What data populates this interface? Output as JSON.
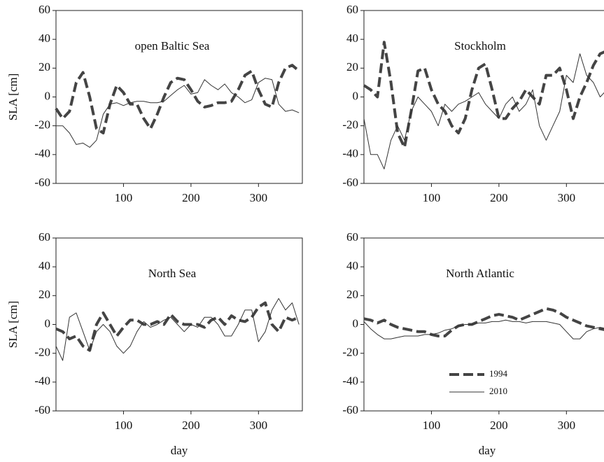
{
  "chart_data": [
    {
      "type": "line",
      "annotation": "open Baltic Sea",
      "ylabel": "SLA [cm]",
      "x": [
        0,
        10,
        20,
        30,
        40,
        50,
        60,
        70,
        80,
        90,
        100,
        110,
        120,
        130,
        140,
        150,
        160,
        170,
        180,
        190,
        200,
        210,
        220,
        230,
        240,
        250,
        260,
        270,
        280,
        290,
        300,
        310,
        320,
        330,
        340,
        350,
        360
      ],
      "xlim": [
        0,
        365
      ],
      "xticks": [
        100,
        200,
        300
      ],
      "ylim": [
        -60,
        60
      ],
      "yticks": [
        -60,
        -40,
        -20,
        0,
        20,
        40,
        60
      ],
      "series": [
        {
          "color": "#444444",
          "linestyle": "dashed",
          "values": [
            -8,
            -15,
            -10,
            10,
            17,
            0,
            -22,
            -25,
            -5,
            8,
            3,
            -5,
            -5,
            -15,
            -22,
            -12,
            0,
            10,
            13,
            12,
            5,
            -3,
            -7,
            -6,
            -4,
            -4,
            -3,
            5,
            15,
            18,
            5,
            -5,
            -7,
            10,
            20,
            22,
            18
          ]
        },
        {
          "color": "#333333",
          "linestyle": "solid",
          "values": [
            -20,
            -20,
            -25,
            -33,
            -32,
            -35,
            -30,
            -12,
            -5,
            -4,
            -6,
            -4,
            -3,
            -3,
            -4,
            -4,
            -3,
            1,
            5,
            8,
            2,
            3,
            12,
            8,
            5,
            9,
            3,
            0,
            -4,
            -2,
            10,
            13,
            12,
            -5,
            -10,
            -9,
            -11
          ]
        }
      ]
    },
    {
      "type": "line",
      "annotation": "Stockholm",
      "x": [
        0,
        10,
        20,
        30,
        40,
        50,
        60,
        70,
        80,
        90,
        100,
        110,
        120,
        130,
        140,
        150,
        160,
        170,
        180,
        190,
        200,
        210,
        220,
        230,
        240,
        250,
        260,
        270,
        280,
        290,
        300,
        310,
        320,
        330,
        340,
        350,
        360
      ],
      "xlim": [
        0,
        365
      ],
      "xticks": [
        100,
        200,
        300
      ],
      "ylim": [
        -60,
        60
      ],
      "yticks": [
        -60,
        -40,
        -20,
        0,
        20,
        40,
        60
      ],
      "series": [
        {
          "color": "#444444",
          "linestyle": "dashed",
          "values": [
            8,
            5,
            0,
            38,
            10,
            -25,
            -35,
            -10,
            18,
            20,
            5,
            -5,
            -10,
            -20,
            -25,
            -15,
            5,
            20,
            23,
            5,
            -15,
            -15,
            -8,
            -3,
            5,
            0,
            -5,
            15,
            15,
            20,
            5,
            -15,
            0,
            10,
            22,
            30,
            32
          ]
        },
        {
          "color": "#333333",
          "linestyle": "solid",
          "values": [
            -15,
            -40,
            -40,
            -50,
            -30,
            -20,
            -30,
            -10,
            0,
            -5,
            -10,
            -20,
            -5,
            -10,
            -5,
            -3,
            0,
            3,
            -5,
            -10,
            -15,
            -5,
            0,
            -10,
            -5,
            5,
            -20,
            -30,
            -20,
            -10,
            15,
            10,
            30,
            15,
            10,
            0,
            5
          ]
        }
      ]
    },
    {
      "type": "line",
      "annotation": "North Sea",
      "ylabel": "SLA [cm]",
      "xlabel": "day",
      "x": [
        0,
        10,
        20,
        30,
        40,
        50,
        60,
        70,
        80,
        90,
        100,
        110,
        120,
        130,
        140,
        150,
        160,
        170,
        180,
        190,
        200,
        210,
        220,
        230,
        240,
        250,
        260,
        270,
        280,
        290,
        300,
        310,
        320,
        330,
        340,
        350,
        360
      ],
      "xlim": [
        0,
        365
      ],
      "xticks": [
        100,
        200,
        300
      ],
      "ylim": [
        -60,
        60
      ],
      "yticks": [
        -60,
        -40,
        -20,
        0,
        20,
        40,
        60
      ],
      "series": [
        {
          "color": "#444444",
          "linestyle": "dashed",
          "values": [
            -3,
            -5,
            -10,
            -8,
            -15,
            -18,
            0,
            8,
            0,
            -8,
            -2,
            3,
            3,
            0,
            0,
            2,
            0,
            7,
            2,
            0,
            0,
            0,
            -2,
            3,
            5,
            0,
            6,
            3,
            2,
            5,
            12,
            15,
            0,
            -5,
            5,
            3,
            5
          ]
        },
        {
          "color": "#333333",
          "linestyle": "solid",
          "values": [
            -15,
            -25,
            5,
            8,
            -5,
            -18,
            -5,
            0,
            -5,
            -15,
            -20,
            -15,
            -5,
            2,
            -2,
            0,
            3,
            5,
            0,
            -5,
            0,
            -2,
            5,
            5,
            0,
            -8,
            -8,
            0,
            10,
            10,
            -12,
            -5,
            10,
            18,
            10,
            15,
            0
          ]
        }
      ]
    },
    {
      "type": "line",
      "annotation": "North Atlantic",
      "xlabel": "day",
      "legend": "lower center",
      "x": [
        0,
        10,
        20,
        30,
        40,
        50,
        60,
        70,
        80,
        90,
        100,
        110,
        120,
        130,
        140,
        150,
        160,
        170,
        180,
        190,
        200,
        210,
        220,
        230,
        240,
        250,
        260,
        270,
        280,
        290,
        300,
        310,
        320,
        330,
        340,
        350,
        360
      ],
      "xlim": [
        0,
        365
      ],
      "xticks": [
        100,
        200,
        300
      ],
      "ylim": [
        -60,
        60
      ],
      "yticks": [
        -60,
        -40,
        -20,
        0,
        20,
        40,
        60
      ],
      "series": [
        {
          "name": "1994",
          "color": "#444444",
          "linestyle": "dashed",
          "values": [
            4,
            3,
            1,
            3,
            0,
            -2,
            -3,
            -4,
            -5,
            -5,
            -7,
            -8,
            -8,
            -4,
            -1,
            0,
            0,
            2,
            4,
            6,
            7,
            6,
            5,
            3,
            5,
            7,
            9,
            11,
            10,
            8,
            5,
            3,
            1,
            -1,
            -2,
            -3,
            -4
          ]
        },
        {
          "name": "2010",
          "color": "#333333",
          "linestyle": "solid",
          "values": [
            2,
            -3,
            -7,
            -10,
            -10,
            -9,
            -8,
            -8,
            -8,
            -7,
            -7,
            -6,
            -4,
            -3,
            -1,
            0,
            0,
            1,
            1,
            2,
            2,
            3,
            2,
            2,
            1,
            2,
            2,
            2,
            1,
            0,
            -5,
            -10,
            -10,
            -5,
            -3,
            -2,
            -3
          ]
        }
      ]
    }
  ]
}
